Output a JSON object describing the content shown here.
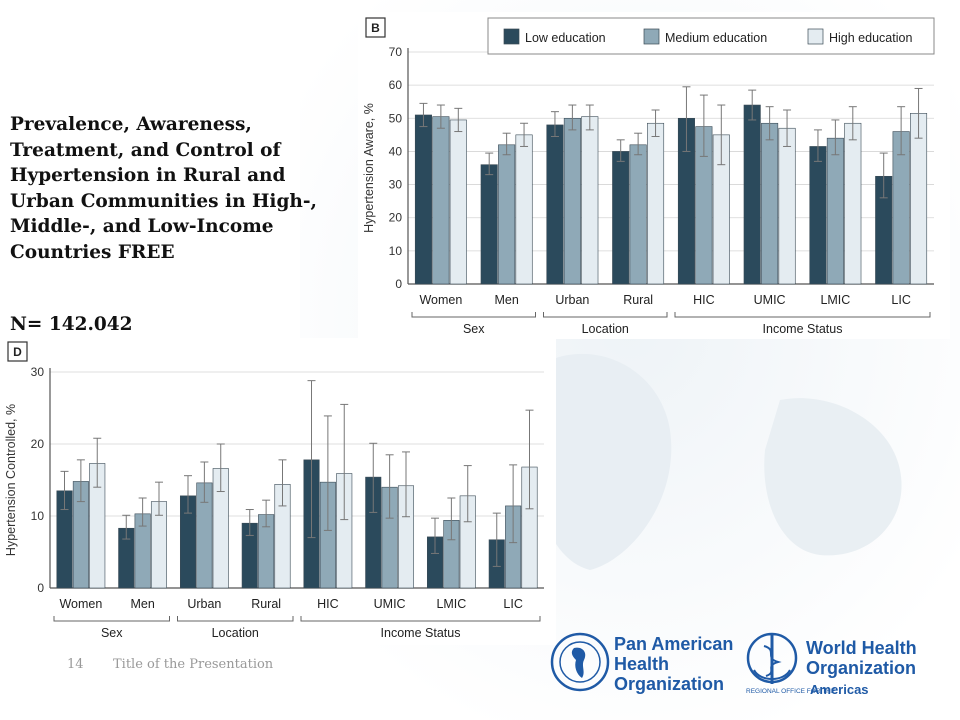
{
  "slide": {
    "title": "Prevalence, Awareness, Treatment, and Control of Hypertension in Rural and Urban Communities in High-, Middle-, and Low-Income Countries FREE",
    "n_label": "N= 142.042",
    "page_number": "14",
    "footer_title": "Title of the Presentation"
  },
  "logos": {
    "paho_lines": [
      "Pan American",
      "Health",
      "Organization"
    ],
    "who_lines": [
      "World Health",
      "Organization"
    ],
    "who_sub": "REGIONAL OFFICE FOR THE",
    "who_sub2": "Americas",
    "paho_color": "#1f5aa6",
    "who_color": "#1f5aa6"
  },
  "colors": {
    "low": "#2b4a5c",
    "medium": "#8fa9b7",
    "high": "#e4ecf1"
  },
  "chart_data": [
    {
      "panel_label": "B",
      "type": "bar",
      "ylabel": "Hypertension Aware, %",
      "ylim": [
        0,
        70
      ],
      "yticks": [
        0,
        10,
        20,
        30,
        40,
        50,
        60,
        70
      ],
      "grid": true,
      "legend_position": "top",
      "categories": [
        "Women",
        "Men",
        "Urban",
        "Rural",
        "HIC",
        "UMIC",
        "LMIC",
        "LIC"
      ],
      "groups": [
        {
          "label": "Sex",
          "categories": [
            "Women",
            "Men"
          ]
        },
        {
          "label": "Location",
          "categories": [
            "Urban",
            "Rural"
          ]
        },
        {
          "label": "Income Status",
          "categories": [
            "HIC",
            "UMIC",
            "LMIC",
            "LIC"
          ]
        }
      ],
      "series": [
        {
          "name": "Low education",
          "values": [
            51,
            36,
            48,
            40,
            50,
            54,
            41.5,
            32.5
          ],
          "ci_low": [
            47.5,
            33,
            44.5,
            37,
            40,
            49.5,
            37,
            26
          ],
          "ci_high": [
            54.5,
            39.5,
            52,
            43.5,
            59.5,
            58.5,
            46.5,
            39.5
          ]
        },
        {
          "name": "Medium education",
          "values": [
            50.5,
            42,
            50,
            42,
            47.5,
            48.5,
            44,
            46
          ],
          "ci_low": [
            47,
            39,
            46.5,
            39,
            38.5,
            43.5,
            39,
            39
          ],
          "ci_high": [
            54,
            45.5,
            54,
            45.5,
            57,
            53.5,
            49.5,
            53.5
          ]
        },
        {
          "name": "High education",
          "values": [
            49.5,
            45,
            50.5,
            48.5,
            45,
            47,
            48.5,
            51.5
          ],
          "ci_low": [
            46,
            41.5,
            46.5,
            44.5,
            36,
            41.5,
            43.5,
            44
          ],
          "ci_high": [
            53,
            48.5,
            54,
            52.5,
            54,
            52.5,
            53.5,
            59
          ]
        }
      ]
    },
    {
      "panel_label": "D",
      "type": "bar",
      "ylabel": "Hypertension Controlled, %",
      "ylim": [
        0,
        30
      ],
      "yticks": [
        0,
        10,
        20,
        30
      ],
      "grid": true,
      "categories": [
        "Women",
        "Men",
        "Urban",
        "Rural",
        "HIC",
        "UMIC",
        "LMIC",
        "LIC"
      ],
      "groups": [
        {
          "label": "Sex",
          "categories": [
            "Women",
            "Men"
          ]
        },
        {
          "label": "Location",
          "categories": [
            "Urban",
            "Rural"
          ]
        },
        {
          "label": "Income Status",
          "categories": [
            "HIC",
            "UMIC",
            "LMIC",
            "LIC"
          ]
        }
      ],
      "series": [
        {
          "name": "Low education",
          "values": [
            13.5,
            8.3,
            12.8,
            9.0,
            17.8,
            15.4,
            7.1,
            6.7
          ],
          "ci_low": [
            10.9,
            6.8,
            10.4,
            7.3,
            7.0,
            10.5,
            4.8,
            3.0
          ],
          "ci_high": [
            16.2,
            10.1,
            15.6,
            10.9,
            28.8,
            20.1,
            9.7,
            10.4
          ]
        },
        {
          "name": "Medium education",
          "values": [
            14.8,
            10.3,
            14.6,
            10.2,
            14.7,
            14.0,
            9.4,
            11.4
          ],
          "ci_low": [
            12.0,
            8.6,
            11.9,
            8.5,
            8.0,
            9.7,
            6.7,
            6.3
          ],
          "ci_high": [
            17.8,
            12.5,
            17.5,
            12.2,
            23.9,
            18.5,
            12.5,
            17.1
          ]
        },
        {
          "name": "High education",
          "values": [
            17.3,
            12.0,
            16.6,
            14.4,
            15.9,
            14.2,
            12.8,
            16.8
          ],
          "ci_low": [
            14.0,
            10.1,
            13.4,
            11.4,
            9.5,
            9.9,
            9.2,
            11.0
          ],
          "ci_high": [
            20.8,
            14.7,
            20.0,
            17.8,
            25.5,
            18.9,
            17.0,
            24.7
          ]
        }
      ]
    }
  ]
}
